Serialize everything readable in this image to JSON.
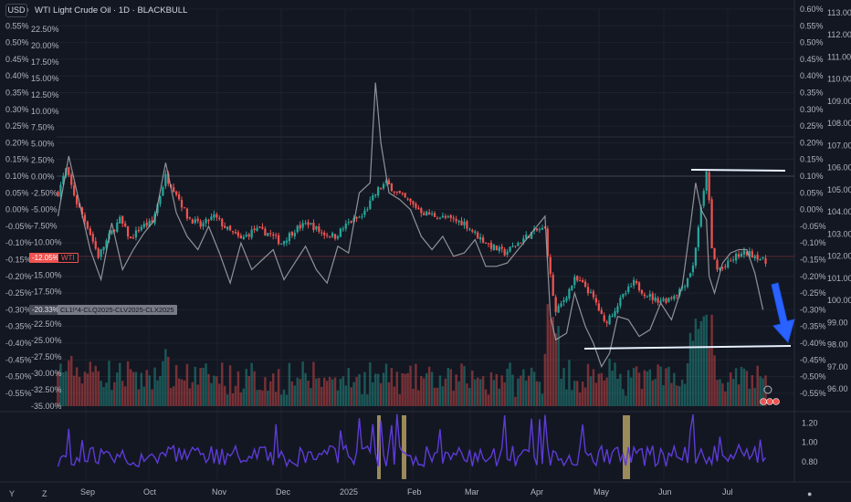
{
  "header": {
    "currency_button": "USD",
    "title": "WTI Light Crude Oil · 1D · BLACKBULL"
  },
  "tags": {
    "last_change": "-12.05%",
    "symbol": "WTI",
    "spread_change": "-20.33%",
    "spread_formula": "CL1!*4-CLQ2025-CLV2025-CLX2025"
  },
  "colors": {
    "background": "#131722",
    "grid": "#1e222d",
    "up": "#26a69a",
    "down": "#ef5350",
    "spread_line": "#a6a8ad",
    "oscillator": "#5d3bd6",
    "highlight": "#c9b26d",
    "annotation": "#e8f2ff",
    "arrow": "#2962ff"
  },
  "icons": [
    "bolt-icon",
    "event-flag-icon",
    "alert-dot-icon",
    "zoom-icon",
    "settings-icon"
  ],
  "chart_data": [
    {
      "type": "candlestick",
      "name": "WTI Light Crude Oil (percent axis)",
      "left_axis_ticks": [
        "0.60%",
        "0.55%",
        "0.50%",
        "0.45%",
        "0.40%",
        "0.35%",
        "0.30%",
        "0.25%",
        "0.20%",
        "0.15%",
        "0.10%",
        "0.05%",
        "0.00%",
        "-0.05%",
        "-0.10%",
        "-0.15%",
        "-0.20%",
        "-0.25%",
        "-0.30%",
        "-0.35%",
        "-0.40%",
        "-0.45%",
        "-0.50%",
        "-0.55%"
      ],
      "right_pct_ticks": [
        "0.60%",
        "0.55%",
        "0.50%",
        "0.45%",
        "0.40%",
        "0.35%",
        "0.30%",
        "0.25%",
        "0.20%",
        "0.15%",
        "0.10%",
        "0.05%",
        "0.00%",
        "-0.05%",
        "-0.10%",
        "-0.15%",
        "-0.20%",
        "-0.25%",
        "-0.30%",
        "-0.35%",
        "-0.40%",
        "-0.45%",
        "-0.50%",
        "-0.55%"
      ],
      "right_price_ticks": [
        "113.00",
        "112.00",
        "111.00",
        "110.00",
        "109.00",
        "108.00",
        "107.00",
        "106.00",
        "105.00",
        "104.00",
        "103.00",
        "102.00",
        "101.00",
        "100.00",
        "99.00",
        "98.00",
        "97.00",
        "96.00"
      ],
      "ylim_pct": [
        -0.575,
        0.6
      ],
      "x_labels": [
        "Sep",
        "Oct",
        "Nov",
        "Dec",
        "2025",
        "Feb",
        "Mar",
        "Apr",
        "May",
        "Jun",
        "Jul"
      ],
      "close_path_pct": [
        [
          0,
          0.05
        ],
        [
          3,
          0.12
        ],
        [
          7,
          0.02
        ],
        [
          11,
          -0.05
        ],
        [
          15,
          -0.14
        ],
        [
          19,
          -0.08
        ],
        [
          23,
          -0.03
        ],
        [
          27,
          -0.09
        ],
        [
          31,
          -0.05
        ],
        [
          35,
          -0.04
        ],
        [
          40,
          0.1
        ],
        [
          44,
          0.05
        ],
        [
          48,
          -0.02
        ],
        [
          53,
          -0.05
        ],
        [
          58,
          -0.02
        ],
        [
          63,
          -0.06
        ],
        [
          68,
          -0.09
        ],
        [
          73,
          -0.06
        ],
        [
          78,
          -0.07
        ],
        [
          83,
          -0.1
        ],
        [
          88,
          -0.06
        ],
        [
          93,
          -0.04
        ],
        [
          98,
          -0.07
        ],
        [
          103,
          -0.08
        ],
        [
          108,
          -0.04
        ],
        [
          113,
          -0.02
        ],
        [
          116,
          0.02
        ],
        [
          119,
          0.06
        ],
        [
          122,
          0.08
        ],
        [
          126,
          0.05
        ],
        [
          131,
          0.02
        ],
        [
          136,
          -0.01
        ],
        [
          141,
          -0.02
        ],
        [
          146,
          -0.03
        ],
        [
          151,
          -0.04
        ],
        [
          156,
          -0.08
        ],
        [
          161,
          -0.11
        ],
        [
          166,
          -0.13
        ],
        [
          171,
          -0.1
        ],
        [
          176,
          -0.07
        ],
        [
          179,
          -0.06
        ],
        [
          181,
          -0.06
        ],
        [
          183,
          -0.2
        ],
        [
          185,
          -0.31
        ],
        [
          188,
          -0.27
        ],
        [
          192,
          -0.21
        ],
        [
          196,
          -0.23
        ],
        [
          200,
          -0.28
        ],
        [
          203,
          -0.34
        ],
        [
          206,
          -0.31
        ],
        [
          210,
          -0.26
        ],
        [
          214,
          -0.22
        ],
        [
          218,
          -0.25
        ],
        [
          222,
          -0.27
        ],
        [
          226,
          -0.27
        ],
        [
          230,
          -0.25
        ],
        [
          233,
          -0.22
        ],
        [
          236,
          -0.17
        ],
        [
          238,
          -0.05
        ],
        [
          240,
          0.05
        ],
        [
          241,
          0.12
        ],
        [
          242,
          0.02
        ],
        [
          243,
          -0.12
        ],
        [
          245,
          -0.18
        ],
        [
          248,
          -0.17
        ],
        [
          252,
          -0.14
        ],
        [
          256,
          -0.13
        ],
        [
          260,
          -0.14
        ],
        [
          263,
          -0.16
        ]
      ],
      "annotations": [
        {
          "kind": "horizontal-line",
          "level_price": 105.6,
          "range": "Jun to Jul"
        },
        {
          "kind": "horizontal-line",
          "level_price": 97.95,
          "range": "May to end"
        },
        {
          "kind": "arrow",
          "direction": "down"
        }
      ]
    },
    {
      "type": "line",
      "name": "CL1!*4-CLQ2025-CLV2025-CLX2025",
      "scale_ticks": [
        "22.50%",
        "20.00%",
        "17.50%",
        "15.00%",
        "12.50%",
        "10.00%",
        "7.50%",
        "5.00%",
        "2.50%",
        "0.00%",
        "-2.50%",
        "-5.00%",
        "-7.50%",
        "-10.00%",
        "-12.50%",
        "-15.00%",
        "-17.50%",
        "-20.00%",
        "-22.50%",
        "-25.00%",
        "-27.50%",
        "-30.00%",
        "-32.50%",
        "-35.00%"
      ],
      "ylim": [
        -35,
        22.5
      ],
      "path": [
        [
          0,
          -0.02
        ],
        [
          4,
          0.16
        ],
        [
          8,
          0.02
        ],
        [
          12,
          -0.12
        ],
        [
          16,
          -0.21
        ],
        [
          20,
          -0.04
        ],
        [
          24,
          -0.18
        ],
        [
          28,
          -0.12
        ],
        [
          32,
          -0.07
        ],
        [
          36,
          -0.03
        ],
        [
          40,
          0.14
        ],
        [
          44,
          -0.01
        ],
        [
          48,
          -0.08
        ],
        [
          52,
          -0.12
        ],
        [
          56,
          -0.05
        ],
        [
          60,
          -0.13
        ],
        [
          64,
          -0.22
        ],
        [
          68,
          -0.1
        ],
        [
          72,
          -0.18
        ],
        [
          76,
          -0.15
        ],
        [
          80,
          -0.12
        ],
        [
          84,
          -0.21
        ],
        [
          88,
          -0.16
        ],
        [
          92,
          -0.11
        ],
        [
          96,
          -0.18
        ],
        [
          100,
          -0.22
        ],
        [
          104,
          -0.11
        ],
        [
          108,
          -0.13
        ],
        [
          112,
          0.05
        ],
        [
          116,
          0.08
        ],
        [
          118,
          0.38
        ],
        [
          120,
          0.2
        ],
        [
          123,
          0.05
        ],
        [
          127,
          0.03
        ],
        [
          131,
          0.0
        ],
        [
          135,
          -0.08
        ],
        [
          139,
          -0.12
        ],
        [
          143,
          -0.08
        ],
        [
          147,
          -0.14
        ],
        [
          151,
          -0.13
        ],
        [
          155,
          -0.09
        ],
        [
          159,
          -0.17
        ],
        [
          163,
          -0.17
        ],
        [
          167,
          -0.16
        ],
        [
          171,
          -0.12
        ],
        [
          175,
          -0.08
        ],
        [
          179,
          -0.04
        ],
        [
          181,
          -0.02
        ],
        [
          183,
          -0.32
        ],
        [
          185,
          -0.39
        ],
        [
          189,
          -0.37
        ],
        [
          192,
          -0.25
        ],
        [
          196,
          -0.35
        ],
        [
          199,
          -0.4
        ],
        [
          202,
          -0.47
        ],
        [
          205,
          -0.43
        ],
        [
          208,
          -0.32
        ],
        [
          212,
          -0.33
        ],
        [
          216,
          -0.38
        ],
        [
          220,
          -0.36
        ],
        [
          224,
          -0.28
        ],
        [
          228,
          -0.33
        ],
        [
          232,
          -0.23
        ],
        [
          235,
          -0.05
        ],
        [
          237,
          0.08
        ],
        [
          239,
          0.0
        ],
        [
          241,
          -0.03
        ],
        [
          242,
          -0.2
        ],
        [
          244,
          -0.25
        ],
        [
          247,
          -0.16
        ],
        [
          250,
          -0.13
        ],
        [
          253,
          -0.12
        ],
        [
          256,
          -0.12
        ],
        [
          259,
          -0.19
        ],
        [
          262,
          -0.3
        ]
      ]
    },
    {
      "type": "bar",
      "name": "Volume",
      "note": "per-candle volume bars colored by candle direction"
    },
    {
      "type": "line",
      "name": "Oscillator",
      "ticks": [
        "1.20",
        "1.00",
        "0.80"
      ],
      "ylim": [
        0.62,
        1.28
      ],
      "highlight_ranges": [
        "mid-January (wide band)",
        "late January (narrow band)",
        "early May"
      ],
      "x_labels": [
        "Sep",
        "Oct",
        "Nov",
        "Dec",
        "2025",
        "Feb",
        "Mar",
        "Apr",
        "May",
        "Jun",
        "Jul"
      ]
    }
  ]
}
